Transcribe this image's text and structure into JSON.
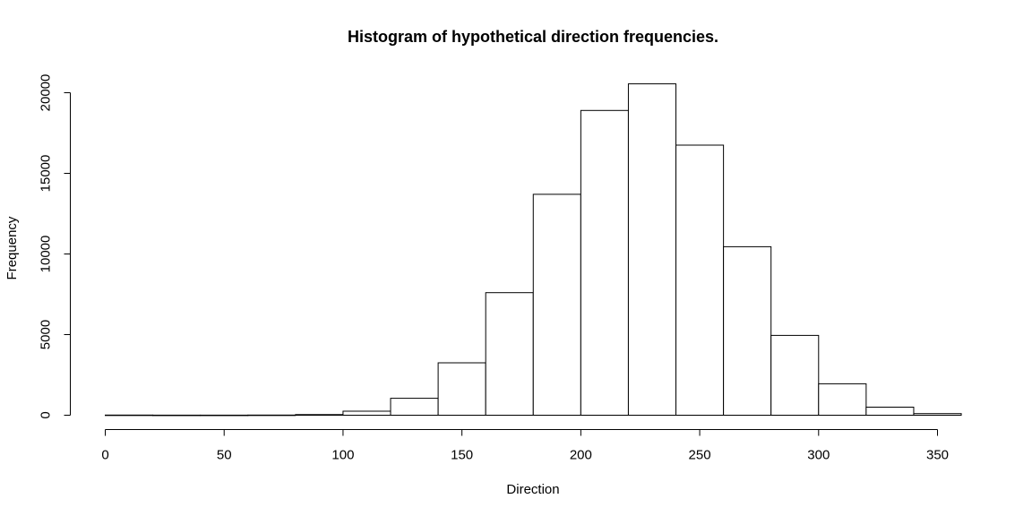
{
  "chart_data": {
    "type": "bar",
    "title": "Histogram of hypothetical direction frequencies.",
    "xlabel": "Direction",
    "ylabel": "Frequency",
    "xlim": [
      0,
      360
    ],
    "ylim": [
      0,
      20000
    ],
    "x_ticks": [
      0,
      50,
      100,
      150,
      200,
      250,
      300,
      350
    ],
    "y_ticks": [
      0,
      5000,
      10000,
      15000,
      20000
    ],
    "bins": [
      {
        "start": 0,
        "end": 20,
        "count": 10
      },
      {
        "start": 20,
        "end": 40,
        "count": 5
      },
      {
        "start": 40,
        "end": 60,
        "count": 5
      },
      {
        "start": 60,
        "end": 80,
        "count": 10
      },
      {
        "start": 80,
        "end": 100,
        "count": 40
      },
      {
        "start": 100,
        "end": 120,
        "count": 250
      },
      {
        "start": 120,
        "end": 140,
        "count": 1050
      },
      {
        "start": 140,
        "end": 160,
        "count": 3250
      },
      {
        "start": 160,
        "end": 180,
        "count": 7600
      },
      {
        "start": 180,
        "end": 200,
        "count": 13700
      },
      {
        "start": 200,
        "end": 220,
        "count": 18900
      },
      {
        "start": 220,
        "end": 240,
        "count": 20550
      },
      {
        "start": 240,
        "end": 260,
        "count": 16750
      },
      {
        "start": 260,
        "end": 280,
        "count": 10450
      },
      {
        "start": 280,
        "end": 300,
        "count": 4950
      },
      {
        "start": 300,
        "end": 320,
        "count": 1950
      },
      {
        "start": 320,
        "end": 340,
        "count": 500
      },
      {
        "start": 340,
        "end": 360,
        "count": 100
      }
    ]
  }
}
